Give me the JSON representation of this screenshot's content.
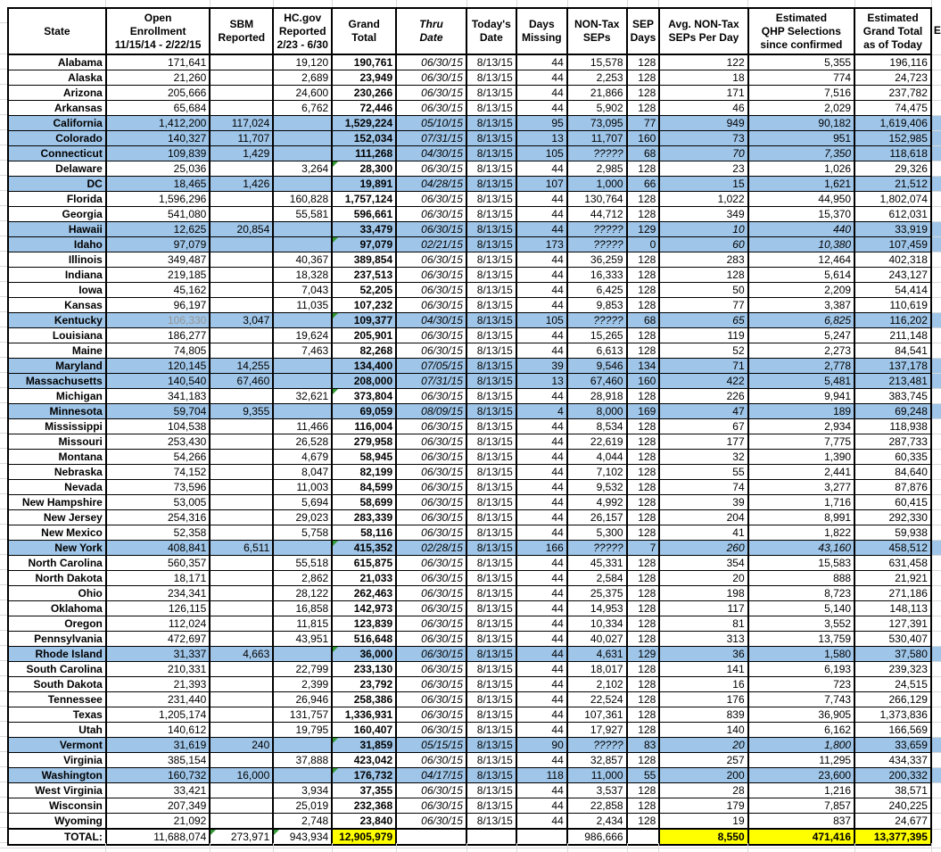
{
  "sheet": {
    "partial_column_label": "E",
    "columns": [
      {
        "id": "state",
        "label": "State"
      },
      {
        "id": "open",
        "label": "Open\nEnrollment\n11/15/14 - 2/22/15"
      },
      {
        "id": "sbm",
        "label": "SBM\nReported"
      },
      {
        "id": "hcgov",
        "label": "HC.gov\nReported\n2/23 - 6/30"
      },
      {
        "id": "grand",
        "label": "Grand\nTotal"
      },
      {
        "id": "thru",
        "label": "Thru\nDate",
        "italic": true
      },
      {
        "id": "today",
        "label": "Today's\nDate"
      },
      {
        "id": "missing",
        "label": "Days\nMissing"
      },
      {
        "id": "seps",
        "label": "NON-Tax\nSEPs"
      },
      {
        "id": "sep_days",
        "label": "SEP\nDays"
      },
      {
        "id": "avg",
        "label": "Avg. NON-Tax\nSEPs Per Day"
      },
      {
        "id": "qhp",
        "label": "Estimated\nQHP Selections\nsince confirmed"
      },
      {
        "id": "est",
        "label": "Estimated\nGrand Total\nas of Today"
      }
    ],
    "rows": [
      [
        "Alabama",
        "171,641",
        "",
        "19,120",
        "190,761",
        "06/30/15",
        "8/13/15",
        "44",
        "15,578",
        "128",
        "122",
        "5,355",
        "196,116"
      ],
      [
        "Alaska",
        "21,260",
        "",
        "2,689",
        "23,949",
        "06/30/15",
        "8/13/15",
        "44",
        "2,253",
        "128",
        "18",
        "774",
        "24,723"
      ],
      [
        "Arizona",
        "205,666",
        "",
        "24,600",
        "230,266",
        "06/30/15",
        "8/13/15",
        "44",
        "21,866",
        "128",
        "171",
        "7,516",
        "237,782"
      ],
      [
        "Arkansas",
        "65,684",
        "",
        "6,762",
        "72,446",
        "06/30/15",
        "8/13/15",
        "44",
        "5,902",
        "128",
        "46",
        "2,029",
        "74,475"
      ],
      [
        "California",
        "1,412,200",
        "117,024",
        "",
        "1,529,224",
        "05/10/15",
        "8/13/15",
        "95",
        "73,095",
        "77",
        "949",
        "90,182",
        "1,619,406"
      ],
      [
        "Colorado",
        "140,327",
        "11,707",
        "",
        "152,034",
        "07/31/15",
        "8/13/15",
        "13",
        "11,707",
        "160",
        "73",
        "951",
        "152,985"
      ],
      [
        "Connecticut",
        "109,839",
        "1,429",
        "",
        "111,268",
        "04/30/15",
        "8/13/15",
        "105",
        "?????",
        "68",
        "70",
        "7,350",
        "118,618"
      ],
      [
        "Delaware",
        "25,036",
        "",
        "3,264",
        "28,300",
        "06/30/15",
        "8/13/15",
        "44",
        "2,985",
        "128",
        "23",
        "1,026",
        "29,326"
      ],
      [
        "DC",
        "18,465",
        "1,426",
        "",
        "19,891",
        "04/28/15",
        "8/13/15",
        "107",
        "1,000",
        "66",
        "15",
        "1,621",
        "21,512"
      ],
      [
        "Florida",
        "1,596,296",
        "",
        "160,828",
        "1,757,124",
        "06/30/15",
        "8/13/15",
        "44",
        "130,764",
        "128",
        "1,022",
        "44,950",
        "1,802,074"
      ],
      [
        "Georgia",
        "541,080",
        "",
        "55,581",
        "596,661",
        "06/30/15",
        "8/13/15",
        "44",
        "44,712",
        "128",
        "349",
        "15,370",
        "612,031"
      ],
      [
        "Hawaii",
        "12,625",
        "20,854",
        "",
        "33,479",
        "06/30/15",
        "8/13/15",
        "44",
        "?????",
        "129",
        "10",
        "440",
        "33,919"
      ],
      [
        "Idaho",
        "97,079",
        "",
        "",
        "97,079",
        "02/21/15",
        "8/13/15",
        "173",
        "?????",
        "0",
        "60",
        "10,380",
        "107,459"
      ],
      [
        "Illinois",
        "349,487",
        "",
        "40,367",
        "389,854",
        "06/30/15",
        "8/13/15",
        "44",
        "36,259",
        "128",
        "283",
        "12,464",
        "402,318"
      ],
      [
        "Indiana",
        "219,185",
        "",
        "18,328",
        "237,513",
        "06/30/15",
        "8/13/15",
        "44",
        "16,333",
        "128",
        "128",
        "5,614",
        "243,127"
      ],
      [
        "Iowa",
        "45,162",
        "",
        "7,043",
        "52,205",
        "06/30/15",
        "8/13/15",
        "44",
        "6,425",
        "128",
        "50",
        "2,209",
        "54,414"
      ],
      [
        "Kansas",
        "96,197",
        "",
        "11,035",
        "107,232",
        "06/30/15",
        "8/13/15",
        "44",
        "9,853",
        "128",
        "77",
        "3,387",
        "110,619"
      ],
      [
        "Kentucky",
        "106,330",
        "3,047",
        "",
        "109,377",
        "04/30/15",
        "8/13/15",
        "105",
        "?????",
        "68",
        "65",
        "6,825",
        "116,202"
      ],
      [
        "Louisiana",
        "186,277",
        "",
        "19,624",
        "205,901",
        "06/30/15",
        "8/13/15",
        "44",
        "15,265",
        "128",
        "119",
        "5,247",
        "211,148"
      ],
      [
        "Maine",
        "74,805",
        "",
        "7,463",
        "82,268",
        "06/30/15",
        "8/13/15",
        "44",
        "6,613",
        "128",
        "52",
        "2,273",
        "84,541"
      ],
      [
        "Maryland",
        "120,145",
        "14,255",
        "",
        "134,400",
        "07/05/15",
        "8/13/15",
        "39",
        "9,546",
        "134",
        "71",
        "2,778",
        "137,178"
      ],
      [
        "Massachusetts",
        "140,540",
        "67,460",
        "",
        "208,000",
        "07/31/15",
        "8/13/15",
        "13",
        "67,460",
        "160",
        "422",
        "5,481",
        "213,481"
      ],
      [
        "Michigan",
        "341,183",
        "",
        "32,621",
        "373,804",
        "06/30/15",
        "8/13/15",
        "44",
        "28,918",
        "128",
        "226",
        "9,941",
        "383,745"
      ],
      [
        "Minnesota",
        "59,704",
        "9,355",
        "",
        "69,059",
        "08/09/15",
        "8/13/15",
        "4",
        "8,000",
        "169",
        "47",
        "189",
        "69,248"
      ],
      [
        "Mississippi",
        "104,538",
        "",
        "11,466",
        "116,004",
        "06/30/15",
        "8/13/15",
        "44",
        "8,534",
        "128",
        "67",
        "2,934",
        "118,938"
      ],
      [
        "Missouri",
        "253,430",
        "",
        "26,528",
        "279,958",
        "06/30/15",
        "8/13/15",
        "44",
        "22,619",
        "128",
        "177",
        "7,775",
        "287,733"
      ],
      [
        "Montana",
        "54,266",
        "",
        "4,679",
        "58,945",
        "06/30/15",
        "8/13/15",
        "44",
        "4,044",
        "128",
        "32",
        "1,390",
        "60,335"
      ],
      [
        "Nebraska",
        "74,152",
        "",
        "8,047",
        "82,199",
        "06/30/15",
        "8/13/15",
        "44",
        "7,102",
        "128",
        "55",
        "2,441",
        "84,640"
      ],
      [
        "Nevada",
        "73,596",
        "",
        "11,003",
        "84,599",
        "06/30/15",
        "8/13/15",
        "44",
        "9,532",
        "128",
        "74",
        "3,277",
        "87,876"
      ],
      [
        "New Hampshire",
        "53,005",
        "",
        "5,694",
        "58,699",
        "06/30/15",
        "8/13/15",
        "44",
        "4,992",
        "128",
        "39",
        "1,716",
        "60,415"
      ],
      [
        "New Jersey",
        "254,316",
        "",
        "29,023",
        "283,339",
        "06/30/15",
        "8/13/15",
        "44",
        "26,157",
        "128",
        "204",
        "8,991",
        "292,330"
      ],
      [
        "New Mexico",
        "52,358",
        "",
        "5,758",
        "58,116",
        "06/30/15",
        "8/13/15",
        "44",
        "5,300",
        "128",
        "41",
        "1,822",
        "59,938"
      ],
      [
        "New York",
        "408,841",
        "6,511",
        "",
        "415,352",
        "02/28/15",
        "8/13/15",
        "166",
        "?????",
        "7",
        "260",
        "43,160",
        "458,512"
      ],
      [
        "North Carolina",
        "560,357",
        "",
        "55,518",
        "615,875",
        "06/30/15",
        "8/13/15",
        "44",
        "45,331",
        "128",
        "354",
        "15,583",
        "631,458"
      ],
      [
        "North Dakota",
        "18,171",
        "",
        "2,862",
        "21,033",
        "06/30/15",
        "8/13/15",
        "44",
        "2,584",
        "128",
        "20",
        "888",
        "21,921"
      ],
      [
        "Ohio",
        "234,341",
        "",
        "28,122",
        "262,463",
        "06/30/15",
        "8/13/15",
        "44",
        "25,375",
        "128",
        "198",
        "8,723",
        "271,186"
      ],
      [
        "Oklahoma",
        "126,115",
        "",
        "16,858",
        "142,973",
        "06/30/15",
        "8/13/15",
        "44",
        "14,953",
        "128",
        "117",
        "5,140",
        "148,113"
      ],
      [
        "Oregon",
        "112,024",
        "",
        "11,815",
        "123,839",
        "06/30/15",
        "8/13/15",
        "44",
        "10,334",
        "128",
        "81",
        "3,552",
        "127,391"
      ],
      [
        "Pennsylvania",
        "472,697",
        "",
        "43,951",
        "516,648",
        "06/30/15",
        "8/13/15",
        "44",
        "40,027",
        "128",
        "313",
        "13,759",
        "530,407"
      ],
      [
        "Rhode Island",
        "31,337",
        "4,663",
        "",
        "36,000",
        "06/30/15",
        "8/13/15",
        "44",
        "4,631",
        "129",
        "36",
        "1,580",
        "37,580"
      ],
      [
        "South Carolina",
        "210,331",
        "",
        "22,799",
        "233,130",
        "06/30/15",
        "8/13/15",
        "44",
        "18,017",
        "128",
        "141",
        "6,193",
        "239,323"
      ],
      [
        "South Dakota",
        "21,393",
        "",
        "2,399",
        "23,792",
        "06/30/15",
        "8/13/15",
        "44",
        "2,102",
        "128",
        "16",
        "723",
        "24,515"
      ],
      [
        "Tennessee",
        "231,440",
        "",
        "26,946",
        "258,386",
        "06/30/15",
        "8/13/15",
        "44",
        "22,524",
        "128",
        "176",
        "7,743",
        "266,129"
      ],
      [
        "Texas",
        "1,205,174",
        "",
        "131,757",
        "1,336,931",
        "06/30/15",
        "8/13/15",
        "44",
        "107,361",
        "128",
        "839",
        "36,905",
        "1,373,836"
      ],
      [
        "Utah",
        "140,612",
        "",
        "19,795",
        "160,407",
        "06/30/15",
        "8/13/15",
        "44",
        "17,927",
        "128",
        "140",
        "6,162",
        "166,569"
      ],
      [
        "Vermont",
        "31,619",
        "240",
        "",
        "31,859",
        "05/15/15",
        "8/13/15",
        "90",
        "?????",
        "83",
        "20",
        "1,800",
        "33,659"
      ],
      [
        "Virginia",
        "385,154",
        "",
        "37,888",
        "423,042",
        "06/30/15",
        "8/13/15",
        "44",
        "32,857",
        "128",
        "257",
        "11,295",
        "434,337"
      ],
      [
        "Washington",
        "160,732",
        "16,000",
        "",
        "176,732",
        "04/17/15",
        "8/13/15",
        "118",
        "11,000",
        "55",
        "200",
        "23,600",
        "200,332"
      ],
      [
        "West Virginia",
        "33,421",
        "",
        "3,934",
        "37,355",
        "06/30/15",
        "8/13/15",
        "44",
        "3,537",
        "128",
        "28",
        "1,216",
        "38,571"
      ],
      [
        "Wisconsin",
        "207,349",
        "",
        "25,019",
        "232,368",
        "06/30/15",
        "8/13/15",
        "44",
        "22,858",
        "128",
        "179",
        "7,857",
        "240,225"
      ],
      [
        "Wyoming",
        "21,092",
        "",
        "2,748",
        "23,840",
        "06/30/15",
        "8/13/15",
        "44",
        "2,434",
        "128",
        "19",
        "837",
        "24,677"
      ]
    ],
    "blue_rows": [
      "California",
      "Colorado",
      "Connecticut",
      "DC",
      "Hawaii",
      "Idaho",
      "Kentucky",
      "Maryland",
      "Massachusetts",
      "Minnesota",
      "New York",
      "Rhode Island",
      "Vermont",
      "Washington"
    ],
    "pink_rows": [
      "Connecticut",
      "Hawaii",
      "Idaho",
      "Kentucky",
      "New York",
      "Vermont"
    ],
    "flag_rows": [
      "Delaware",
      "Idaho",
      "Kentucky",
      "Michigan",
      "New York",
      "Rhode Island",
      "Vermont",
      "Washington"
    ],
    "gray_open_rows": [
      "Kentucky"
    ],
    "total": {
      "label": "TOTAL:",
      "open": "11,688,074",
      "sbm": "273,971",
      "hcgov": "943,934",
      "grand": "12,905,979",
      "thru": "",
      "today": "",
      "missing": "",
      "seps": "986,666",
      "sep_days": "",
      "avg": "8,550",
      "qhp": "471,416",
      "est": "13,377,395",
      "yellow_cells": [
        "grand",
        "avg",
        "qhp",
        "est"
      ],
      "flag_cells": [
        "sbm",
        "hcgov"
      ]
    },
    "colors": {
      "row_highlight_blue": "#9FC5E8",
      "estimate_highlight_pink": "#FF99CC",
      "total_highlight_yellow": "#FFFF00",
      "comment_flag_green": "#339933",
      "muted_text_gray": "#969696"
    }
  }
}
